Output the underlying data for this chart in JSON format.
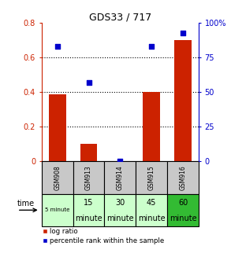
{
  "title": "GDS33 / 717",
  "samples": [
    "GSM908",
    "GSM913",
    "GSM914",
    "GSM915",
    "GSM916"
  ],
  "time_labels_line1": [
    "5 minute",
    "15",
    "30",
    "45",
    "60"
  ],
  "time_labels_line2": [
    "",
    "minute",
    "minute",
    "minute",
    "minute"
  ],
  "log_ratio": [
    0.39,
    0.1,
    0.0,
    0.4,
    0.7
  ],
  "percentile_rank": [
    83,
    57,
    0,
    83,
    93
  ],
  "ylim_left": [
    0,
    0.8
  ],
  "ylim_right": [
    0,
    100
  ],
  "yticks_left": [
    0,
    0.2,
    0.4,
    0.6,
    0.8
  ],
  "yticks_right": [
    0,
    25,
    50,
    75,
    100
  ],
  "ytick_labels_right": [
    "0",
    "25",
    "50",
    "75",
    "100%"
  ],
  "bar_color": "#cc2200",
  "scatter_color": "#0000cc",
  "bg_color": "#ffffff",
  "sample_bg": "#c8c8c8",
  "time_bg_light": "#ccffcc",
  "time_bg_dark": "#33bb33"
}
